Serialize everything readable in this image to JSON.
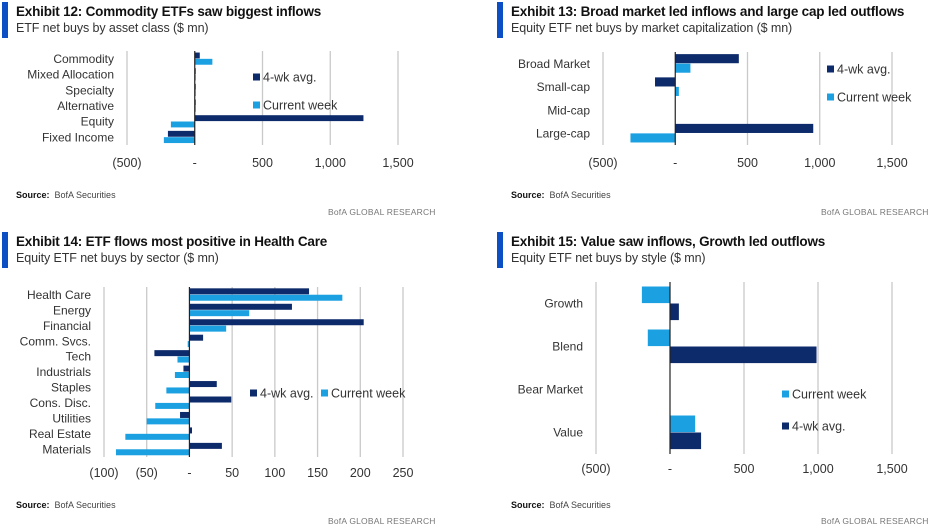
{
  "colors": {
    "avg4wk": "#0d2a6b",
    "current": "#1ba1e2",
    "grid": "#c9c9c9",
    "axis": "#222222",
    "accent": "#0c4fc4"
  },
  "footer": {
    "source_label": "Source:",
    "source_value": "BofA Securities",
    "brand": "BofA GLOBAL RESEARCH"
  },
  "chart_data": [
    {
      "id": "ex12",
      "type": "bar",
      "orientation": "horizontal",
      "title": "Exhibit 12: Commodity ETFs saw biggest inflows",
      "subtitle": "ETF net buys by asset class ($ mn)",
      "categories": [
        "Commodity",
        "Mixed Allocation",
        "Specialty",
        "Alternative",
        "Equity",
        "Fixed Income"
      ],
      "series": [
        {
          "name": "4-wk avg.",
          "key": "avg4wk",
          "values": [
            37,
            3,
            2,
            3,
            1245,
            -198
          ]
        },
        {
          "name": "Current week",
          "key": "current",
          "values": [
            130,
            2,
            1,
            2,
            -176,
            -228
          ]
        }
      ],
      "xlim": [
        -500,
        1500
      ],
      "xticks": [
        -500,
        0,
        500,
        1000,
        1500
      ],
      "xtick_labels": [
        "(500)",
        "-",
        "500",
        "1,000",
        "1,500"
      ],
      "legend_order": [
        "avg4wk",
        "current"
      ],
      "legend_position": "center-right",
      "grid": true
    },
    {
      "id": "ex13",
      "type": "bar",
      "orientation": "horizontal",
      "title": "Exhibit 13: Broad  market led inflows and large cap led outflows",
      "subtitle": "Equity ETF net buys by market capitalization ($ mn)",
      "categories": [
        "Broad Market",
        "Small-cap",
        "Mid-cap",
        "Large-cap"
      ],
      "series": [
        {
          "name": "4-wk avg.",
          "key": "avg4wk",
          "values": [
            440,
            -140,
            0,
            955
          ]
        },
        {
          "name": "Current week",
          "key": "current",
          "values": [
            105,
            25,
            0,
            -310
          ]
        }
      ],
      "xlim": [
        -500,
        1500
      ],
      "xticks": [
        -500,
        0,
        500,
        1000,
        1500
      ],
      "xtick_labels": [
        "(500)",
        "-",
        "500",
        "1,000",
        "1,500"
      ],
      "legend_order": [
        "avg4wk",
        "current"
      ],
      "legend_position": "top-right",
      "grid": true
    },
    {
      "id": "ex14",
      "type": "bar",
      "orientation": "horizontal",
      "title": "Exhibit 14: ETF flows most positive in Health Care",
      "subtitle": "Equity ETF net buys by sector ($ mn)",
      "categories": [
        "Health Care",
        "Energy",
        "Financial",
        "Comm. Svcs.",
        "Tech",
        "Industrials",
        "Staples",
        "Cons. Disc.",
        "Utilities",
        "Real Estate",
        "Materials"
      ],
      "series": [
        {
          "name": "4-wk avg.",
          "key": "avg4wk",
          "values": [
            140,
            120,
            204,
            16,
            -41,
            -7,
            32,
            49,
            -11,
            3,
            38
          ]
        },
        {
          "name": "Current week",
          "key": "current",
          "values": [
            179,
            70,
            43,
            -2,
            -14,
            -17,
            -27,
            -40,
            -50,
            -75,
            -86
          ]
        }
      ],
      "xlim": [
        -100,
        250
      ],
      "xticks": [
        -100,
        -50,
        0,
        50,
        100,
        150,
        200,
        250
      ],
      "xtick_labels": [
        "(100)",
        "(50)",
        "-",
        "50",
        "100",
        "150",
        "200",
        "250"
      ],
      "legend_order": [
        "avg4wk",
        "current"
      ],
      "legend_position": "center-right",
      "grid": true
    },
    {
      "id": "ex15",
      "type": "bar",
      "orientation": "horizontal",
      "title": "Exhibit 15: Value saw inflows, Growth led outflows",
      "subtitle": "Equity ETF net buys by style ($ mn)",
      "categories": [
        "Growth",
        "Blend",
        "Bear Market",
        "Value"
      ],
      "series": [
        {
          "name": "Current week",
          "key": "current",
          "values": [
            -190,
            -150,
            0,
            170
          ]
        },
        {
          "name": "4-wk avg.",
          "key": "avg4wk",
          "values": [
            60,
            990,
            0,
            210
          ]
        }
      ],
      "xlim": [
        -500,
        1500
      ],
      "xticks": [
        -500,
        0,
        500,
        1000,
        1500
      ],
      "xtick_labels": [
        "(500)",
        "-",
        "500",
        "1,000",
        "1,500"
      ],
      "legend_order": [
        "current",
        "avg4wk"
      ],
      "legend_position": "bottom-right",
      "grid": true
    }
  ]
}
